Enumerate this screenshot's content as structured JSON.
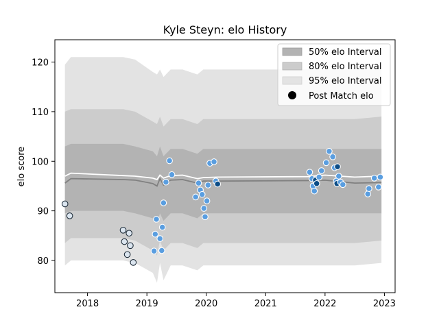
{
  "chart_data": {
    "type": "scatter",
    "title": "Kyle Steyn: elo History",
    "xlabel": "",
    "ylabel": "elo score",
    "xlim": [
      2017.45,
      2023.18
    ],
    "ylim": [
      73.5,
      124.5
    ],
    "x_ticks": [
      2018,
      2019,
      2020,
      2021,
      2022,
      2023
    ],
    "y_ticks": [
      80,
      90,
      100,
      110,
      120
    ],
    "grid": false,
    "legend_position": "top-right",
    "legend": [
      {
        "label": "50% elo Interval",
        "kind": "band50"
      },
      {
        "label": "80% elo Interval",
        "kind": "band80"
      },
      {
        "label": "95% elo Interval",
        "kind": "band95"
      },
      {
        "label": "Post Match elo",
        "kind": "marker"
      }
    ],
    "colors": {
      "band50": "#b3b3b3",
      "band80": "#cccccc",
      "band95": "#e3e3e3",
      "median_line": "#808080",
      "mean_line": "#ffffff",
      "light_point": "#5a9ee0",
      "dark_point": "#0b4c86",
      "early_point": "#dbe5ef",
      "point_edge": "#1f2d3a"
    },
    "bands": {
      "x": [
        2017.62,
        2017.72,
        2018.6,
        2018.8,
        2019.1,
        2019.17,
        2019.22,
        2019.28,
        2019.4,
        2019.6,
        2019.85,
        2019.95,
        2020.2,
        2021.7,
        2022.0,
        2022.5,
        2022.95
      ],
      "p95_low": [
        79,
        80,
        80,
        79.5,
        77.5,
        75.5,
        79.5,
        76,
        79,
        79,
        78,
        79,
        79,
        79,
        79,
        79,
        79.5
      ],
      "p95_high": [
        119.5,
        121,
        121,
        120.5,
        118,
        117.5,
        118.5,
        117,
        118.5,
        118.5,
        117.5,
        118.5,
        118.5,
        118.5,
        118.5,
        118.5,
        118.5
      ],
      "p80_low": [
        83.5,
        84.5,
        84.5,
        84,
        82,
        81,
        84,
        82,
        83.5,
        83.5,
        82.5,
        83.5,
        83.5,
        83.5,
        83.5,
        83.5,
        84
      ],
      "p80_high": [
        110,
        110.5,
        110.5,
        110,
        108,
        107.5,
        109,
        107,
        108.5,
        108.5,
        107.5,
        108.5,
        108.5,
        108.5,
        108.5,
        108.5,
        109
      ],
      "p50_low": [
        89.5,
        90,
        90,
        89.5,
        88.5,
        87.5,
        89.5,
        88,
        89.5,
        89.5,
        88.5,
        89.5,
        89.5,
        89.5,
        89.5,
        89.5,
        89.5
      ],
      "p50_high": [
        103,
        103.5,
        103.5,
        103,
        102,
        101,
        103,
        101,
        102.5,
        102.5,
        101.5,
        102.5,
        102.5,
        102.5,
        102.5,
        102.5,
        102.5
      ],
      "median": [
        95.6,
        96.5,
        96.3,
        96.2,
        95.5,
        95,
        96.5,
        95.2,
        96.2,
        96.3,
        95.6,
        96,
        96,
        96.1,
        96.2,
        95.6,
        95.7
      ],
      "mean": [
        97,
        97.6,
        97.1,
        97,
        96.6,
        96.3,
        97.2,
        96.6,
        97.1,
        97.2,
        96.5,
        96.7,
        96.8,
        96.9,
        97.2,
        96.8,
        97
      ]
    },
    "series": [
      {
        "name": "Post Match elo",
        "points": [
          {
            "x": 2017.62,
            "y": 91.4,
            "c": "early"
          },
          {
            "x": 2017.7,
            "y": 89.0,
            "c": "early"
          },
          {
            "x": 2018.6,
            "y": 86.1,
            "c": "early"
          },
          {
            "x": 2018.62,
            "y": 83.8,
            "c": "early"
          },
          {
            "x": 2018.67,
            "y": 81.2,
            "c": "early"
          },
          {
            "x": 2018.7,
            "y": 85.5,
            "c": "early"
          },
          {
            "x": 2018.72,
            "y": 83.0,
            "c": "early"
          },
          {
            "x": 2018.77,
            "y": 79.6,
            "c": "early"
          },
          {
            "x": 2019.12,
            "y": 81.9,
            "c": "light"
          },
          {
            "x": 2019.14,
            "y": 85.3,
            "c": "light"
          },
          {
            "x": 2019.16,
            "y": 88.3,
            "c": "light"
          },
          {
            "x": 2019.22,
            "y": 84.4,
            "c": "light"
          },
          {
            "x": 2019.25,
            "y": 82.0,
            "c": "light"
          },
          {
            "x": 2019.26,
            "y": 86.7,
            "c": "light"
          },
          {
            "x": 2019.28,
            "y": 91.6,
            "c": "light"
          },
          {
            "x": 2019.32,
            "y": 95.8,
            "c": "light"
          },
          {
            "x": 2019.38,
            "y": 100.1,
            "c": "light"
          },
          {
            "x": 2019.42,
            "y": 97.3,
            "c": "light"
          },
          {
            "x": 2019.82,
            "y": 92.8,
            "c": "light"
          },
          {
            "x": 2019.87,
            "y": 95.6,
            "c": "light"
          },
          {
            "x": 2019.9,
            "y": 94.2,
            "c": "light"
          },
          {
            "x": 2019.93,
            "y": 93.3,
            "c": "light"
          },
          {
            "x": 2019.96,
            "y": 90.5,
            "c": "light"
          },
          {
            "x": 2019.98,
            "y": 88.8,
            "c": "light"
          },
          {
            "x": 2020.01,
            "y": 92.0,
            "c": "light"
          },
          {
            "x": 2020.03,
            "y": 95.2,
            "c": "light"
          },
          {
            "x": 2020.06,
            "y": 99.6,
            "c": "light"
          },
          {
            "x": 2020.13,
            "y": 99.9,
            "c": "light"
          },
          {
            "x": 2020.16,
            "y": 96.0,
            "c": "light"
          },
          {
            "x": 2020.19,
            "y": 95.4,
            "c": "dark"
          },
          {
            "x": 2021.74,
            "y": 97.8,
            "c": "light"
          },
          {
            "x": 2021.78,
            "y": 96.5,
            "c": "light"
          },
          {
            "x": 2021.8,
            "y": 95.0,
            "c": "light"
          },
          {
            "x": 2021.82,
            "y": 94.0,
            "c": "light"
          },
          {
            "x": 2021.84,
            "y": 96.2,
            "c": "dark"
          },
          {
            "x": 2021.86,
            "y": 95.5,
            "c": "dark"
          },
          {
            "x": 2021.9,
            "y": 96.8,
            "c": "light"
          },
          {
            "x": 2021.94,
            "y": 98.1,
            "c": "light"
          },
          {
            "x": 2022.02,
            "y": 99.7,
            "c": "light"
          },
          {
            "x": 2022.07,
            "y": 102.0,
            "c": "light"
          },
          {
            "x": 2022.13,
            "y": 100.9,
            "c": "light"
          },
          {
            "x": 2022.16,
            "y": 98.7,
            "c": "light"
          },
          {
            "x": 2022.19,
            "y": 96.0,
            "c": "light"
          },
          {
            "x": 2022.2,
            "y": 95.5,
            "c": "dark"
          },
          {
            "x": 2022.21,
            "y": 98.9,
            "c": "dark"
          },
          {
            "x": 2022.23,
            "y": 97.0,
            "c": "light"
          },
          {
            "x": 2022.26,
            "y": 95.8,
            "c": "light"
          },
          {
            "x": 2022.3,
            "y": 95.3,
            "c": "light"
          },
          {
            "x": 2022.72,
            "y": 93.4,
            "c": "light"
          },
          {
            "x": 2022.74,
            "y": 94.5,
            "c": "light"
          },
          {
            "x": 2022.83,
            "y": 96.6,
            "c": "light"
          },
          {
            "x": 2022.9,
            "y": 94.8,
            "c": "light"
          },
          {
            "x": 2022.93,
            "y": 96.8,
            "c": "light"
          }
        ]
      }
    ]
  }
}
